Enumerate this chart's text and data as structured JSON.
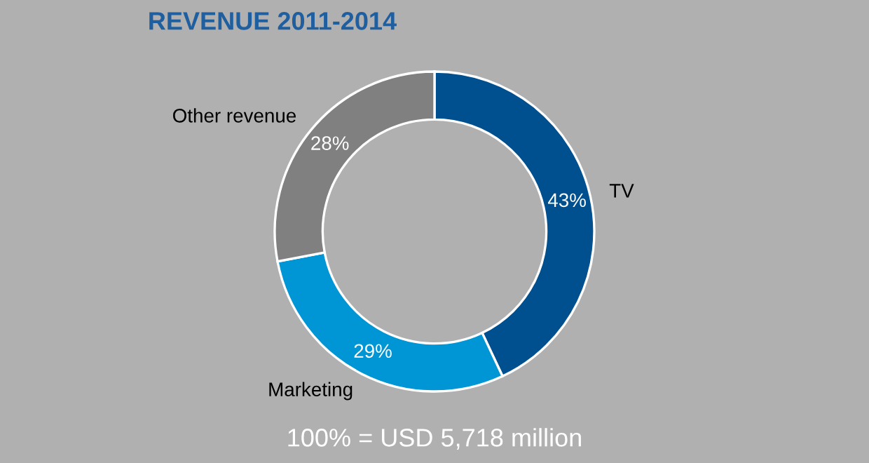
{
  "chart_data": {
    "type": "donut",
    "title": "REVENUE 2011-2014",
    "categories": [
      "TV",
      "Marketing",
      "Other revenue"
    ],
    "values": [
      43,
      29,
      28
    ],
    "value_labels": [
      "43%",
      "29%",
      "28%"
    ],
    "colors": [
      "#00508f",
      "#0096d6",
      "#808080"
    ],
    "annotations": [
      "100% = USD 5,718 million"
    ],
    "legend": false
  }
}
